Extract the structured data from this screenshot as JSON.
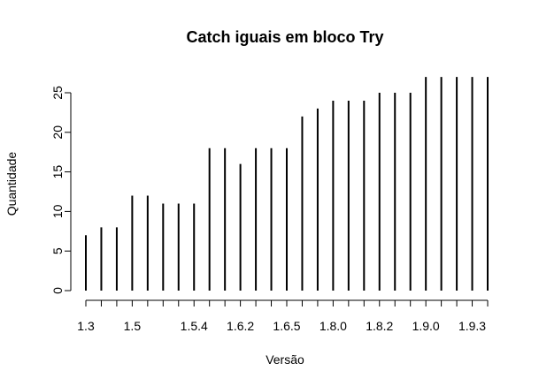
{
  "chart_data": {
    "type": "bar",
    "style": "histogram-spikes",
    "title": "Catch iguais em bloco Try",
    "xlabel": "Versão",
    "ylabel": "Quantidade",
    "ylim": [
      0,
      25
    ],
    "yticks": [
      0,
      5,
      10,
      15,
      20,
      25
    ],
    "x_tick_labels": [
      {
        "index": 0,
        "label": "1.3"
      },
      {
        "index": 3,
        "label": "1.5"
      },
      {
        "index": 7,
        "label": "1.5.4"
      },
      {
        "index": 10,
        "label": "1.6.2"
      },
      {
        "index": 13,
        "label": "1.6.5"
      },
      {
        "index": 16,
        "label": "1.8.0"
      },
      {
        "index": 19,
        "label": "1.8.2"
      },
      {
        "index": 22,
        "label": "1.9.0"
      },
      {
        "index": 25,
        "label": "1.9.3"
      }
    ],
    "values": [
      7,
      8,
      8,
      12,
      12,
      11,
      11,
      11,
      18,
      18,
      16,
      18,
      18,
      18,
      22,
      23,
      24,
      24,
      24,
      25,
      25,
      25,
      27,
      27,
      27,
      27,
      27
    ],
    "grid": false,
    "colors": {
      "bar": "#000000",
      "axis": "#000000",
      "background": "#ffffff"
    }
  }
}
